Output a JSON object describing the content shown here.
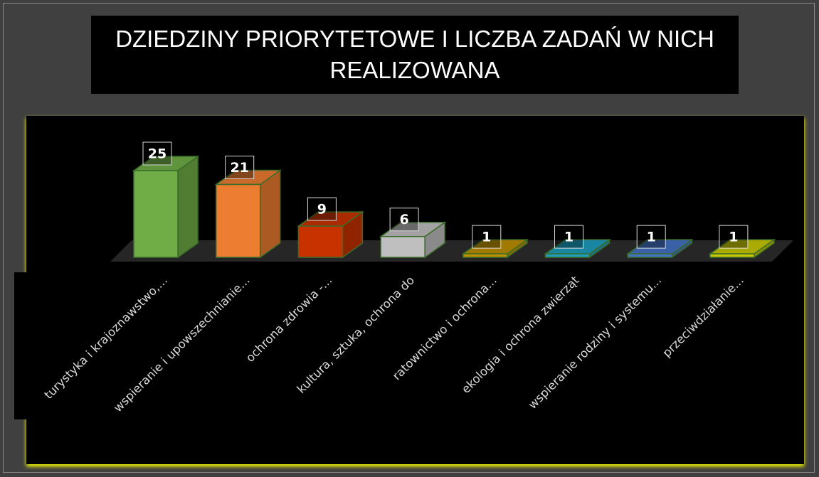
{
  "chart_data": {
    "type": "bar3d",
    "title": "DZIEDZINY PRIORYTETOWE I LICZBA ZADAŃ W NICH REALIZOWANA",
    "categories": [
      "turystyka i krajoznawstwo,...",
      "wspieranie i upowszechnianie...",
      "ochrona zdrowia -...",
      "kultura, sztuka, ochrona do",
      "ratownictwo i ochrona...",
      "ekologia i ochrona zwierząt",
      "wspieranie rodziny i systemu...",
      "przeciwdziałanie..."
    ],
    "values": [
      25,
      21,
      9,
      6,
      1,
      1,
      1,
      1
    ],
    "colors": [
      "#70ad47",
      "#ed7d31",
      "#c83200",
      "#bfbfbf",
      "#bf9000",
      "#1f9fbf",
      "#4472c4",
      "#c8c800"
    ]
  }
}
